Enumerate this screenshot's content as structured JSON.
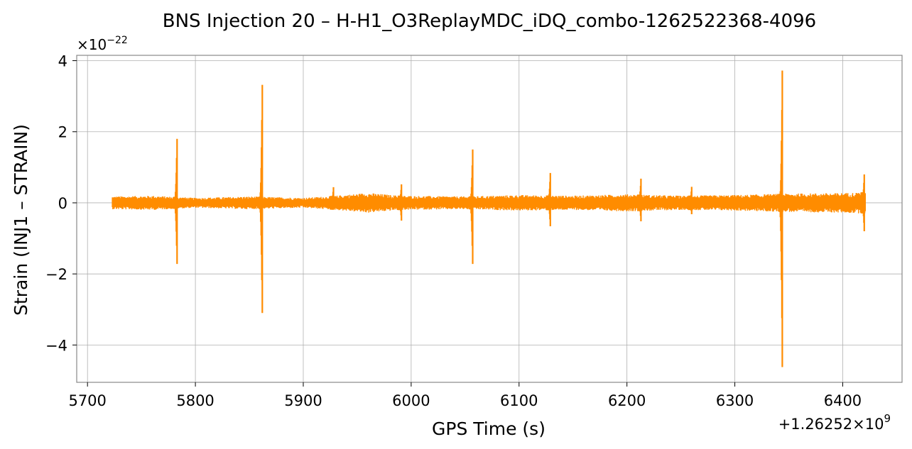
{
  "chart_data": {
    "type": "line",
    "title": "BNS Injection 20 – H-H1_O3ReplayMDC_iDQ_combo-1262522368-4096",
    "xlabel": "GPS Time (s)",
    "ylabel": "Strain (INJ1 – STRAIN)",
    "x_offset_label": "+1.26252×10",
    "x_offset_exponent": "9",
    "y_multiplier_label": "×10",
    "y_multiplier_exponent": "−22",
    "xlim": [
      5690,
      6455
    ],
    "ylim": [
      -5.05,
      4.15
    ],
    "xticks": [
      5700,
      5800,
      5900,
      6000,
      6100,
      6200,
      6300,
      6400
    ],
    "yticks": [
      -4,
      -2,
      0,
      2,
      4
    ],
    "ytick_labels": [
      "−4",
      "−2",
      "0",
      "2",
      "4"
    ],
    "grid": true,
    "line_color": "#ff8c00",
    "series": [
      {
        "x_range": [
          5723,
          6421
        ],
        "noise_envelope": [
          {
            "x": 5723,
            "amp": 0.18
          },
          {
            "x": 5760,
            "amp": 0.2
          },
          {
            "x": 5800,
            "amp": 0.14
          },
          {
            "x": 5850,
            "amp": 0.18
          },
          {
            "x": 5900,
            "amp": 0.14
          },
          {
            "x": 5930,
            "amp": 0.2
          },
          {
            "x": 5960,
            "amp": 0.28
          },
          {
            "x": 5990,
            "amp": 0.2
          },
          {
            "x": 6050,
            "amp": 0.18
          },
          {
            "x": 6100,
            "amp": 0.22
          },
          {
            "x": 6150,
            "amp": 0.2
          },
          {
            "x": 6200,
            "amp": 0.24
          },
          {
            "x": 6250,
            "amp": 0.2
          },
          {
            "x": 6300,
            "amp": 0.22
          },
          {
            "x": 6350,
            "amp": 0.26
          },
          {
            "x": 6400,
            "amp": 0.28
          },
          {
            "x": 6421,
            "amp": 0.3
          }
        ],
        "spikes": [
          {
            "x": 5783,
            "max": 1.8,
            "min": -1.72
          },
          {
            "x": 5862,
            "max": 3.32,
            "min": -3.1
          },
          {
            "x": 5928,
            "max": 0.44,
            "min": -0.18
          },
          {
            "x": 5991,
            "max": 0.52,
            "min": -0.5
          },
          {
            "x": 6057,
            "max": 1.5,
            "min": -1.72
          },
          {
            "x": 6129,
            "max": 0.84,
            "min": -0.66
          },
          {
            "x": 6213,
            "max": 0.68,
            "min": -0.52
          },
          {
            "x": 6260,
            "max": 0.45,
            "min": -0.32
          },
          {
            "x": 6344,
            "max": 3.72,
            "min": -4.62
          },
          {
            "x": 6420,
            "max": 0.8,
            "min": -0.8
          }
        ]
      }
    ]
  }
}
